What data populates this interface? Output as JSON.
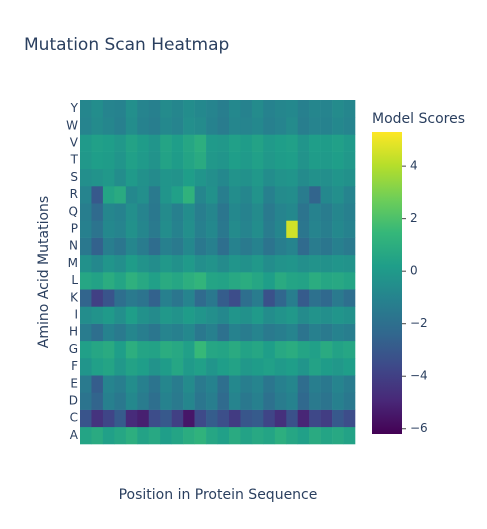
{
  "chart_data": {
    "type": "heatmap",
    "title": "Mutation Scan Heatmap",
    "x_label": "Position in Protein Sequence",
    "y_label": "Amino Acid Mutations",
    "colorbar_title": "Model Scores",
    "colorscale": [
      "#440154",
      "#482878",
      "#3e4989",
      "#31688e",
      "#26828e",
      "#1f9e89",
      "#35b779",
      "#6ece58",
      "#b5de2b",
      "#fde725"
    ],
    "zlim": [
      -6.2,
      5.3
    ],
    "zticks": [
      {
        "value": -6,
        "label": "−6"
      },
      {
        "value": -4,
        "label": "−4"
      },
      {
        "value": -2,
        "label": "−2"
      },
      0,
      2,
      4
    ],
    "categories": [
      "A",
      "C",
      "D",
      "E",
      "F",
      "G",
      "H",
      "I",
      "K",
      "L",
      "M",
      "N",
      "P",
      "Q",
      "R",
      "S",
      "T",
      "V",
      "W",
      "Y"
    ],
    "z": [
      [
        0.5,
        0.8,
        0.3,
        0.6,
        1.0,
        0.4,
        0.7,
        0.2,
        0.5,
        0.9,
        1.2,
        0.6,
        0.3,
        0.8,
        0.4,
        0.7,
        0.5,
        1.0,
        0.6,
        0.3,
        0.8,
        0.5,
        0.7,
        0.4
      ],
      [
        -3.2,
        -4.5,
        -3.8,
        -2.9,
        -4.8,
        -5.2,
        -3.5,
        -3.0,
        -4.0,
        -5.5,
        -3.6,
        -2.8,
        -3.4,
        -4.2,
        -3.1,
        -2.9,
        -3.8,
        -4.6,
        -3.3,
        -5.0,
        -3.7,
        -4.1,
        -3.0,
        -3.5
      ],
      [
        -1.8,
        -2.5,
        -1.2,
        -1.6,
        -0.8,
        -1.4,
        -2.0,
        -1.1,
        -1.5,
        -0.9,
        -1.7,
        -1.3,
        -2.2,
        -1.0,
        -1.6,
        -1.2,
        -1.9,
        -1.4,
        -1.1,
        -2.3,
        -1.5,
        -1.8,
        -1.2,
        -1.6
      ],
      [
        -1.5,
        -2.8,
        -1.0,
        -1.3,
        -0.6,
        -1.2,
        -1.8,
        -0.9,
        -1.4,
        -0.7,
        -1.5,
        -1.1,
        -2.0,
        -0.8,
        -1.3,
        -1.0,
        -1.7,
        -1.2,
        -0.9,
        -2.1,
        -1.3,
        -1.6,
        -1.0,
        -1.4
      ],
      [
        -0.2,
        0.3,
        0.5,
        -0.1,
        0.4,
        0.2,
        -0.3,
        0.1,
        0.6,
        0.0,
        0.3,
        -0.2,
        0.2,
        0.4,
        -0.1,
        0.1,
        0.3,
        0.0,
        0.2,
        -0.2,
        0.4,
        0.1,
        -0.1,
        0.2
      ],
      [
        0.3,
        0.6,
        0.8,
        0.2,
        1.0,
        0.5,
        0.4,
        0.9,
        0.7,
        0.3,
        1.5,
        0.6,
        0.5,
        0.8,
        0.4,
        0.6,
        0.2,
        0.7,
        0.9,
        0.5,
        0.3,
        0.8,
        0.4,
        0.6
      ],
      [
        -1.4,
        -2.0,
        -1.1,
        -1.5,
        -0.9,
        -1.3,
        -1.7,
        -1.0,
        -1.2,
        -0.8,
        -1.6,
        -1.2,
        -1.9,
        -1.1,
        -1.4,
        -1.0,
        -1.5,
        -1.3,
        -1.0,
        -1.8,
        -1.2,
        -1.5,
        -1.1,
        -1.3
      ],
      [
        -0.6,
        -0.3,
        0.0,
        -0.5,
        0.2,
        -0.4,
        -0.7,
        -0.1,
        -0.3,
        0.1,
        -0.2,
        -0.5,
        -0.8,
        -0.2,
        -0.4,
        0.0,
        -0.6,
        -0.3,
        -0.1,
        -0.7,
        -0.3,
        -0.5,
        -0.2,
        -0.4
      ],
      [
        -2.5,
        -4.0,
        -3.2,
        -2.0,
        -1.5,
        -1.8,
        -2.6,
        -1.2,
        -1.7,
        -1.0,
        -2.2,
        -1.6,
        -2.8,
        -3.5,
        -2.0,
        -1.4,
        -3.3,
        -2.4,
        -1.3,
        -2.9,
        -1.9,
        -2.3,
        -1.5,
        -2.0
      ],
      [
        0.6,
        0.4,
        0.9,
        0.5,
        1.1,
        0.7,
        0.3,
        0.8,
        0.6,
        1.0,
        1.3,
        0.5,
        0.4,
        0.7,
        0.9,
        0.6,
        0.2,
        0.8,
        0.5,
        0.4,
        0.9,
        0.6,
        0.7,
        0.5
      ],
      [
        -0.4,
        -0.8,
        -0.2,
        -0.5,
        0.1,
        -0.3,
        -0.6,
        -0.1,
        -0.4,
        0.0,
        -0.5,
        -0.3,
        -0.7,
        -0.2,
        -0.4,
        -0.1,
        -0.6,
        -0.3,
        -0.2,
        -0.5,
        -0.3,
        -0.4,
        -0.2,
        -0.3
      ],
      [
        -1.6,
        -2.6,
        -1.3,
        -1.7,
        -0.9,
        -1.4,
        -2.1,
        -1.2,
        -1.5,
        -0.8,
        -1.6,
        -1.2,
        -2.0,
        -1.1,
        -1.5,
        -1.1,
        -1.8,
        -1.3,
        -1.0,
        -2.2,
        -1.4,
        -1.7,
        -1.2,
        -1.5
      ],
      [
        -1.2,
        -1.8,
        -0.8,
        -1.0,
        -0.4,
        -0.9,
        -1.5,
        -0.6,
        -1.1,
        -0.5,
        -1.2,
        -0.8,
        -1.6,
        -0.7,
        -1.0,
        -0.6,
        -1.4,
        -0.9,
        4.5,
        -1.7,
        -1.0,
        -1.3,
        -0.8,
        -1.1
      ],
      [
        -1.3,
        -2.2,
        -0.9,
        -1.1,
        -0.5,
        -1.0,
        -1.6,
        -0.7,
        -1.2,
        -0.6,
        -1.3,
        -0.9,
        -1.7,
        -0.8,
        -1.1,
        -0.7,
        -1.5,
        -1.0,
        -0.8,
        -1.8,
        -1.1,
        -1.4,
        -0.9,
        -1.2
      ],
      [
        -1.0,
        -3.0,
        0.5,
        0.8,
        -0.8,
        -0.5,
        -1.5,
        -0.2,
        0.3,
        1.2,
        -0.9,
        -0.4,
        -1.3,
        -0.6,
        -0.9,
        -0.3,
        -1.2,
        -0.7,
        -0.6,
        -1.4,
        -2.5,
        -0.8,
        -0.5,
        -1.0
      ],
      [
        -0.5,
        -0.3,
        -0.1,
        -0.6,
        0.0,
        -0.4,
        -0.7,
        -0.2,
        -0.3,
        0.2,
        -0.2,
        -0.5,
        -0.8,
        -0.3,
        -0.4,
        -0.1,
        -0.6,
        -0.3,
        -0.2,
        -0.7,
        -0.4,
        -0.5,
        -0.2,
        -0.4
      ],
      [
        -0.1,
        0.2,
        0.1,
        -0.2,
        0.3,
        0.0,
        -0.3,
        0.4,
        0.1,
        0.5,
        0.8,
        -0.1,
        -0.2,
        0.2,
        0.0,
        0.3,
        -0.1,
        0.1,
        0.2,
        -0.3,
        0.1,
        0.0,
        0.2,
        -0.1
      ],
      [
        0.0,
        0.3,
        0.2,
        -0.1,
        0.4,
        0.1,
        -0.2,
        0.5,
        0.2,
        0.6,
        1.0,
        0.0,
        -0.1,
        0.3,
        0.1,
        0.4,
        0.0,
        0.2,
        0.3,
        -0.2,
        0.2,
        0.1,
        0.3,
        0.0
      ],
      [
        -1.0,
        -0.7,
        -0.9,
        -1.2,
        -0.6,
        -1.1,
        -1.3,
        -0.8,
        -1.0,
        -0.5,
        -0.7,
        -1.1,
        -1.4,
        -0.9,
        -1.0,
        -0.8,
        -1.2,
        -1.0,
        -0.7,
        -1.3,
        -1.0,
        -1.1,
        -0.8,
        -1.0
      ],
      [
        -0.9,
        -0.6,
        -1.0,
        -1.1,
        -0.5,
        -1.0,
        -1.2,
        -0.7,
        -0.9,
        -0.6,
        -0.8,
        -1.0,
        -1.3,
        -0.8,
        -1.1,
        -0.7,
        -1.1,
        -0.9,
        -0.8,
        -1.2,
        -0.9,
        -1.0,
        -0.7,
        -0.9
      ]
    ]
  }
}
